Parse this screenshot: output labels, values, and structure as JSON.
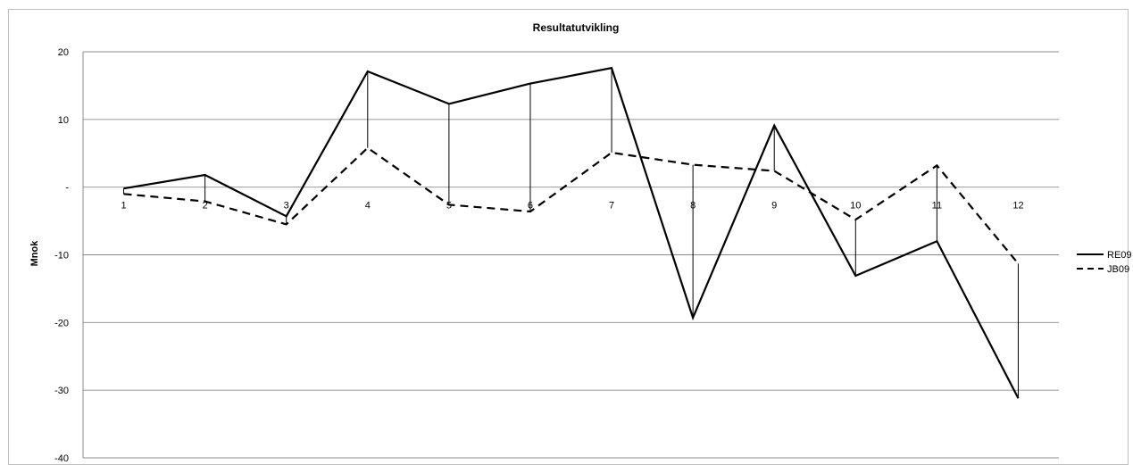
{
  "chart_data": {
    "type": "line",
    "title": "Resultatutvikling",
    "xlabel": "",
    "ylabel": "Mnok",
    "categories": [
      "1",
      "2",
      "3",
      "4",
      "5",
      "6",
      "7",
      "8",
      "9",
      "10",
      "11",
      "12"
    ],
    "y_ticks": [
      20,
      10,
      0,
      -10,
      -20,
      -30,
      -40
    ],
    "y_tick_labels": [
      "20",
      "10",
      "-",
      "-10",
      "-20",
      "-30",
      "-40"
    ],
    "ylim": [
      -40,
      20
    ],
    "grid": true,
    "legend_position": "right",
    "high_low_lines": true,
    "series": [
      {
        "name": "RE09",
        "style": "solid",
        "values": [
          -0.2,
          1.8,
          -4.3,
          17.1,
          12.3,
          15.3,
          17.6,
          -19.3,
          9.1,
          -13.1,
          -8.0,
          -31.2
        ]
      },
      {
        "name": "JB09",
        "style": "dashed",
        "values": [
          -1.0,
          -2.1,
          -5.5,
          5.8,
          -2.6,
          -3.6,
          5.1,
          3.3,
          2.4,
          -4.8,
          3.2,
          -11.3
        ]
      }
    ]
  }
}
